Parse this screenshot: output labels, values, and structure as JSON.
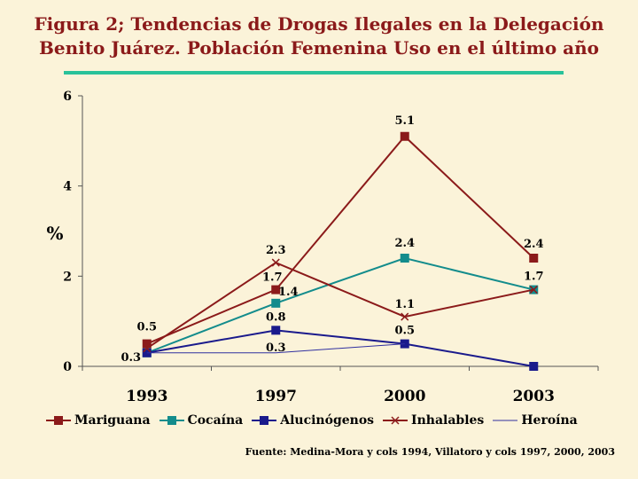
{
  "title_line1": "Figura 2; Tendencias de Drogas Ilegales en  la Delegación",
  "title_line2": "Benito Juárez. Población Femenina Uso en el último año",
  "source": "Fuente: Medina-Mora y cols 1994, Villatoro y cols 1997, 2000, 2003",
  "colors": {
    "title": "#8b1a1a",
    "rule": "#29c29a",
    "background": "#fbf3d9"
  },
  "chart_data": {
    "type": "line",
    "categories": [
      "1993",
      "1997",
      "2000",
      "2003"
    ],
    "ylabel": "%",
    "ylim": [
      0,
      6
    ],
    "yticks": [
      "0",
      "2",
      "4",
      "6"
    ],
    "grid": false,
    "legend_position": "bottom",
    "series": [
      {
        "name": "Mariguana",
        "values": [
          0.5,
          1.7,
          5.1,
          2.4
        ],
        "color": "#8b1a1a",
        "marker": "square",
        "labels": [
          "0.5",
          "1.7",
          "5.1",
          "2.4"
        ]
      },
      {
        "name": "Cocaína",
        "values": [
          0.3,
          1.4,
          2.4,
          1.7
        ],
        "color": "#138c8c",
        "marker": "square",
        "labels": [
          "",
          "1.4",
          "2.4",
          "1.7"
        ]
      },
      {
        "name": "Alucinógenos",
        "values": [
          0.3,
          0.8,
          0.5,
          0.0
        ],
        "color": "#1a1a8c",
        "marker": "square",
        "labels": [
          "0.3",
          "0.8",
          "0.5",
          ""
        ]
      },
      {
        "name": "Inhalables",
        "values": [
          0.4,
          2.3,
          1.1,
          1.7
        ],
        "color": "#8b1a1a",
        "marker": "x",
        "labels": [
          "",
          "2.3",
          "1.1",
          ""
        ]
      },
      {
        "name": "Heroína",
        "values": [
          0.3,
          0.3,
          0.5,
          null
        ],
        "color": "#3030a0",
        "marker": "none",
        "labels": [
          "",
          "0.3",
          "",
          ""
        ]
      }
    ]
  }
}
